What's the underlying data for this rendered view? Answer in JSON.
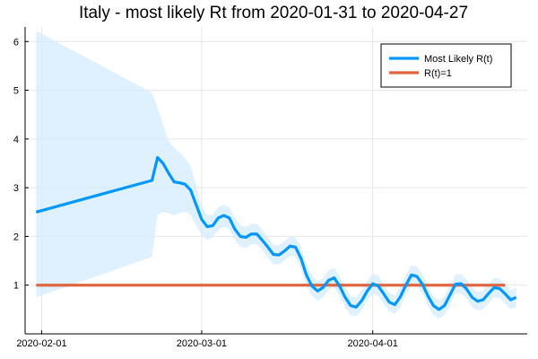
{
  "chart_data": {
    "type": "line",
    "title": "Italy - most likely Rt from 2020-01-31 to 2020-04-27",
    "xlabel": "",
    "ylabel": "",
    "x_axis": {
      "kind": "date",
      "range": [
        "2020-01-31",
        "2020-04-27"
      ],
      "ticks": [
        "2020-02-01",
        "2020-03-01",
        "2020-04-01"
      ],
      "tick_labels": [
        "2020-02-01",
        "2020-03-01",
        "2020-04-01"
      ]
    },
    "y_axis": {
      "range": [
        0,
        6.3
      ],
      "ticks": [
        1,
        2,
        3,
        4,
        5,
        6
      ],
      "tick_labels": [
        "1",
        "2",
        "3",
        "4",
        "5",
        "6"
      ]
    },
    "grid": true,
    "legend": {
      "position": "top-right"
    },
    "colors": {
      "rt_line": "#0097ff",
      "band": "#d4ecfd",
      "threshold_line": "#e0663f"
    },
    "series": [
      {
        "name": "Most Likely R(t)",
        "x": [
          "2020-01-31",
          "2020-02-21",
          "2020-02-22",
          "2020-02-23",
          "2020-02-24",
          "2020-02-25",
          "2020-02-26",
          "2020-02-27",
          "2020-02-28",
          "2020-02-29",
          "2020-03-01",
          "2020-03-02",
          "2020-03-03",
          "2020-03-04",
          "2020-03-05",
          "2020-03-06",
          "2020-03-07",
          "2020-03-08",
          "2020-03-09",
          "2020-03-10",
          "2020-03-11",
          "2020-03-12",
          "2020-03-13",
          "2020-03-14",
          "2020-03-15",
          "2020-03-16",
          "2020-03-17",
          "2020-03-18",
          "2020-03-19",
          "2020-03-20",
          "2020-03-21",
          "2020-03-22",
          "2020-03-23",
          "2020-03-24",
          "2020-03-25",
          "2020-03-26",
          "2020-03-27",
          "2020-03-28",
          "2020-03-29",
          "2020-03-30",
          "2020-03-31",
          "2020-04-01",
          "2020-04-02",
          "2020-04-03",
          "2020-04-04",
          "2020-04-05",
          "2020-04-06",
          "2020-04-07",
          "2020-04-08",
          "2020-04-09",
          "2020-04-10",
          "2020-04-11",
          "2020-04-12",
          "2020-04-13",
          "2020-04-14",
          "2020-04-15",
          "2020-04-16",
          "2020-04-17",
          "2020-04-18",
          "2020-04-19",
          "2020-04-20",
          "2020-04-21",
          "2020-04-22",
          "2020-04-23",
          "2020-04-24",
          "2020-04-25",
          "2020-04-26",
          "2020-04-27"
        ],
        "values": [
          2.5,
          3.15,
          3.62,
          3.5,
          3.3,
          3.12,
          3.1,
          3.07,
          2.95,
          2.65,
          2.35,
          2.2,
          2.22,
          2.38,
          2.43,
          2.38,
          2.15,
          2.0,
          1.98,
          2.05,
          2.05,
          1.92,
          1.78,
          1.63,
          1.62,
          1.7,
          1.8,
          1.78,
          1.55,
          1.2,
          0.98,
          0.88,
          0.95,
          1.1,
          1.15,
          0.98,
          0.75,
          0.58,
          0.55,
          0.68,
          0.88,
          1.03,
          0.98,
          0.82,
          0.65,
          0.6,
          0.76,
          1.0,
          1.21,
          1.18,
          1.02,
          0.78,
          0.58,
          0.5,
          0.58,
          0.8,
          1.02,
          1.03,
          0.92,
          0.75,
          0.67,
          0.7,
          0.83,
          0.95,
          0.93,
          0.82,
          0.7,
          0.75
        ]
      },
      {
        "name": "R(t)=1",
        "x": [
          "2020-01-31",
          "2020-04-25"
        ],
        "values": [
          1,
          1
        ]
      }
    ],
    "band": {
      "x": [
        "2020-01-31",
        "2020-02-21",
        "2020-02-22",
        "2020-02-23",
        "2020-02-24",
        "2020-02-25",
        "2020-02-26",
        "2020-02-27",
        "2020-02-28",
        "2020-02-29",
        "2020-03-01",
        "2020-03-02",
        "2020-03-03",
        "2020-03-04",
        "2020-03-05",
        "2020-03-06",
        "2020-03-07",
        "2020-03-08",
        "2020-03-09",
        "2020-03-10",
        "2020-03-11",
        "2020-03-12",
        "2020-03-13",
        "2020-03-14",
        "2020-03-15",
        "2020-03-16",
        "2020-03-17",
        "2020-03-18",
        "2020-03-19",
        "2020-03-20",
        "2020-03-21",
        "2020-03-22",
        "2020-03-23",
        "2020-03-24",
        "2020-03-25",
        "2020-03-26",
        "2020-03-27",
        "2020-03-28",
        "2020-03-29",
        "2020-03-30",
        "2020-03-31",
        "2020-04-01",
        "2020-04-02",
        "2020-04-03",
        "2020-04-04",
        "2020-04-05",
        "2020-04-06",
        "2020-04-07",
        "2020-04-08",
        "2020-04-09",
        "2020-04-10",
        "2020-04-11",
        "2020-04-12",
        "2020-04-13",
        "2020-04-14",
        "2020-04-15",
        "2020-04-16",
        "2020-04-17",
        "2020-04-18",
        "2020-04-19",
        "2020-04-20",
        "2020-04-21",
        "2020-04-22",
        "2020-04-23",
        "2020-04-24",
        "2020-04-25",
        "2020-04-26",
        "2020-04-27"
      ],
      "upper": [
        6.22,
        4.95,
        4.65,
        4.3,
        3.97,
        3.82,
        3.72,
        3.6,
        3.45,
        3.05,
        2.62,
        2.44,
        2.44,
        2.6,
        2.65,
        2.6,
        2.38,
        2.22,
        2.2,
        2.26,
        2.26,
        2.13,
        1.99,
        1.83,
        1.82,
        1.9,
        2.0,
        1.98,
        1.78,
        1.43,
        1.2,
        1.09,
        1.15,
        1.31,
        1.36,
        1.19,
        0.96,
        0.78,
        0.74,
        0.88,
        1.08,
        1.24,
        1.19,
        1.02,
        0.84,
        0.79,
        0.96,
        1.2,
        1.41,
        1.38,
        1.22,
        0.98,
        0.78,
        0.69,
        0.77,
        1.0,
        1.22,
        1.23,
        1.12,
        0.95,
        0.86,
        0.89,
        1.03,
        1.15,
        1.13,
        1.02,
        0.89,
        0.95
      ],
      "lower": [
        0.75,
        1.58,
        2.45,
        2.5,
        2.48,
        2.43,
        2.48,
        2.5,
        2.44,
        2.22,
        2.02,
        1.93,
        1.98,
        2.14,
        2.2,
        2.15,
        1.93,
        1.79,
        1.76,
        1.84,
        1.84,
        1.71,
        1.57,
        1.43,
        1.42,
        1.5,
        1.6,
        1.58,
        1.33,
        0.99,
        0.78,
        0.68,
        0.75,
        0.9,
        0.95,
        0.78,
        0.55,
        0.38,
        0.36,
        0.48,
        0.68,
        0.83,
        0.78,
        0.62,
        0.45,
        0.41,
        0.56,
        0.8,
        1.01,
        0.98,
        0.82,
        0.58,
        0.38,
        0.31,
        0.39,
        0.6,
        0.82,
        0.83,
        0.72,
        0.55,
        0.48,
        0.51,
        0.63,
        0.75,
        0.73,
        0.62,
        0.51,
        0.55
      ]
    },
    "legend_entries": [
      "Most Likely R(t)",
      "R(t)=1"
    ]
  }
}
